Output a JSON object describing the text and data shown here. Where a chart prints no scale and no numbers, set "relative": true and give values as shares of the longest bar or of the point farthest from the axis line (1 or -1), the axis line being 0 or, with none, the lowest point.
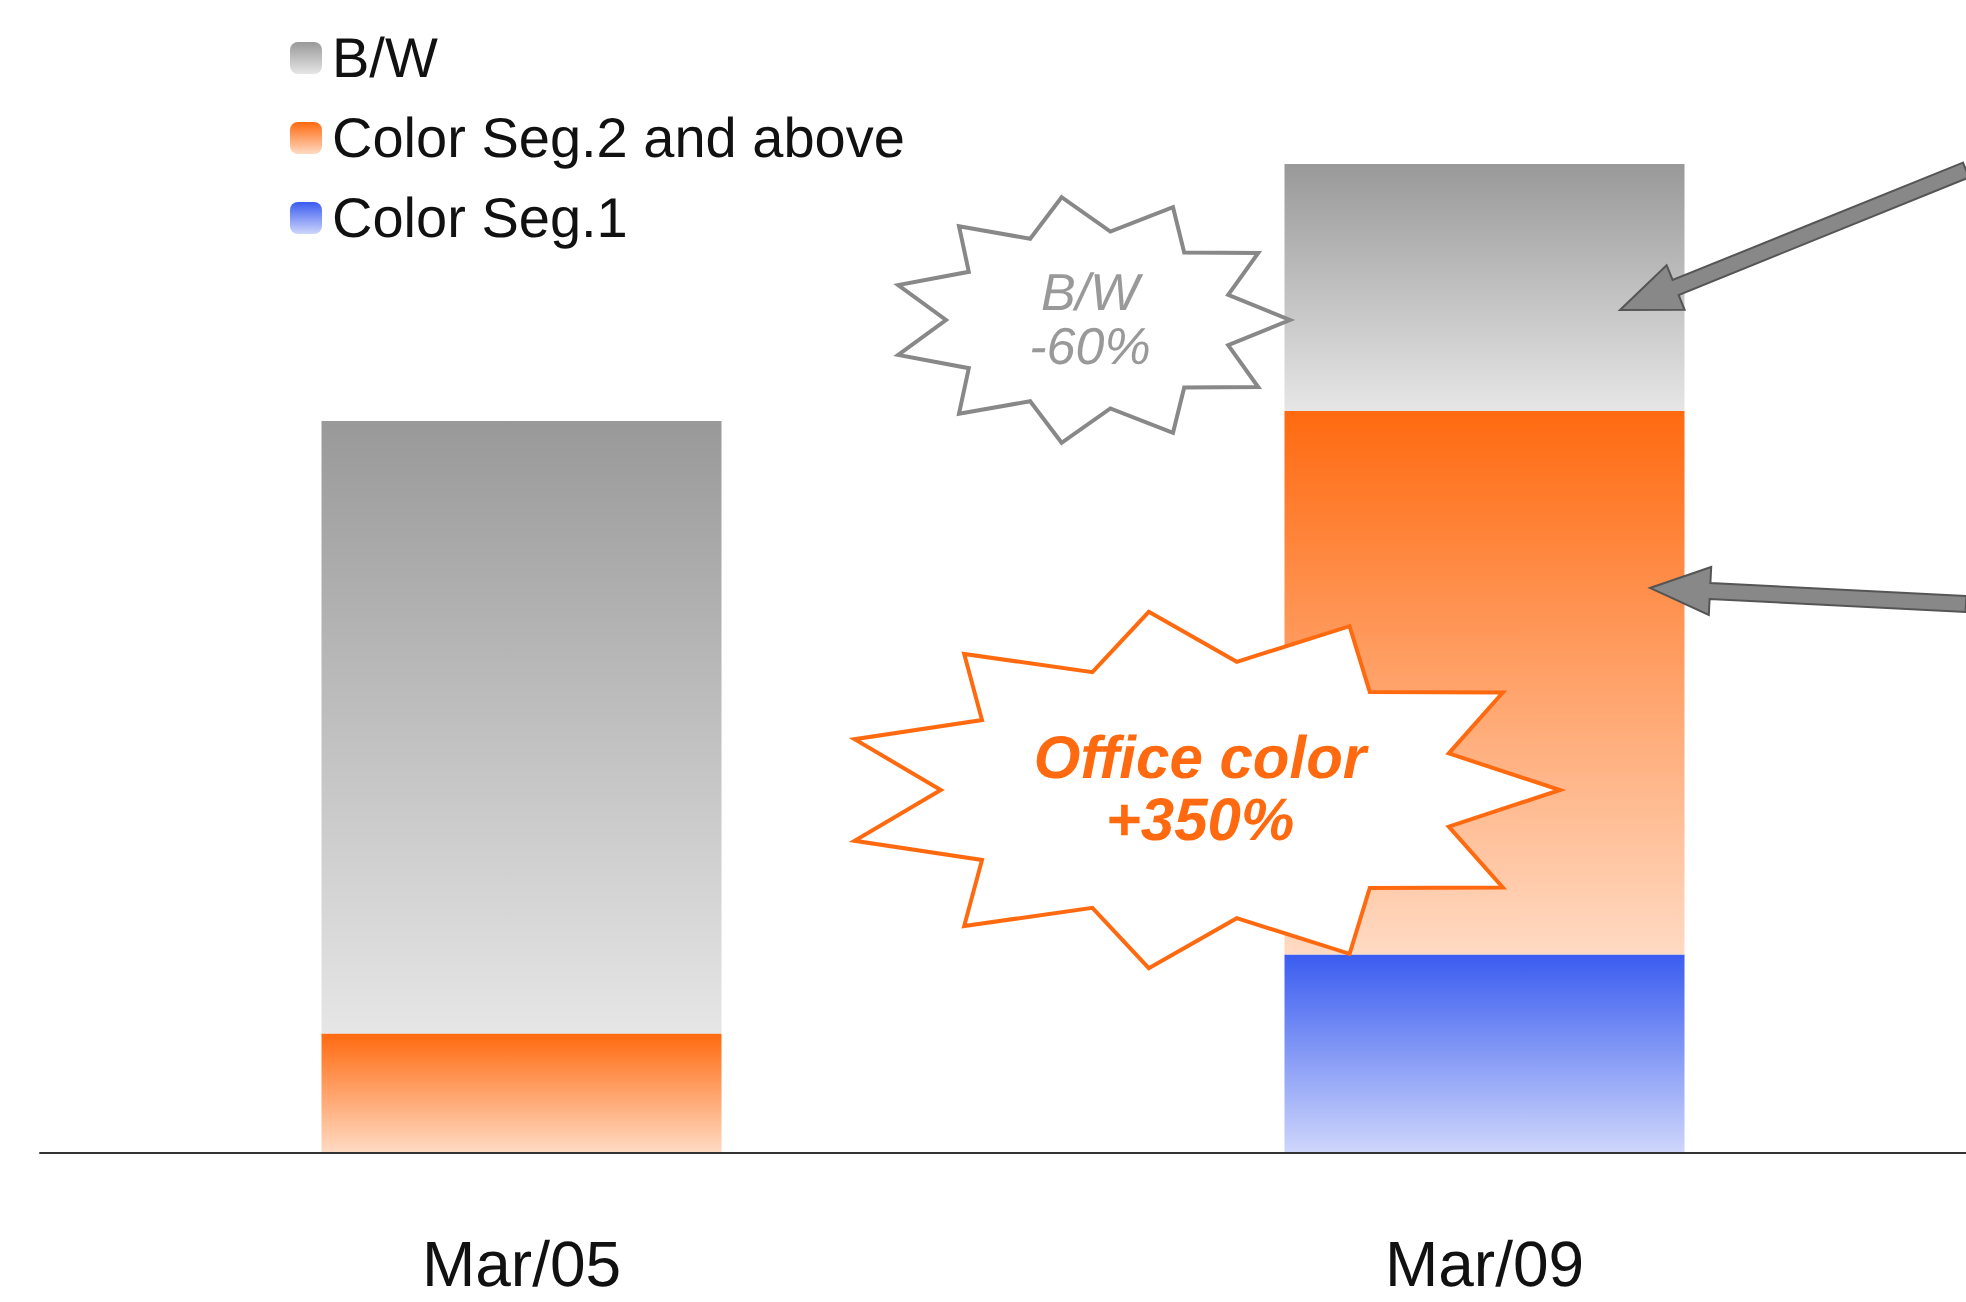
{
  "chart_data": {
    "type": "bar",
    "stacked": true,
    "relative": true,
    "categories": [
      "Mar/05",
      "Mar/09"
    ],
    "series": [
      {
        "name": "Color Seg.1",
        "color": "#3a5cf0",
        "values": [
          0,
          0.2
        ]
      },
      {
        "name": "Color Seg.2 and above",
        "color": "#ff6a10",
        "values": [
          0.12,
          0.55
        ]
      },
      {
        "name": "B/W",
        "color": "#999999",
        "values": [
          0.62,
          0.25
        ]
      }
    ],
    "annotations": [
      "B/W -60%",
      "Office color +350%"
    ],
    "legend": "top left"
  }
}
